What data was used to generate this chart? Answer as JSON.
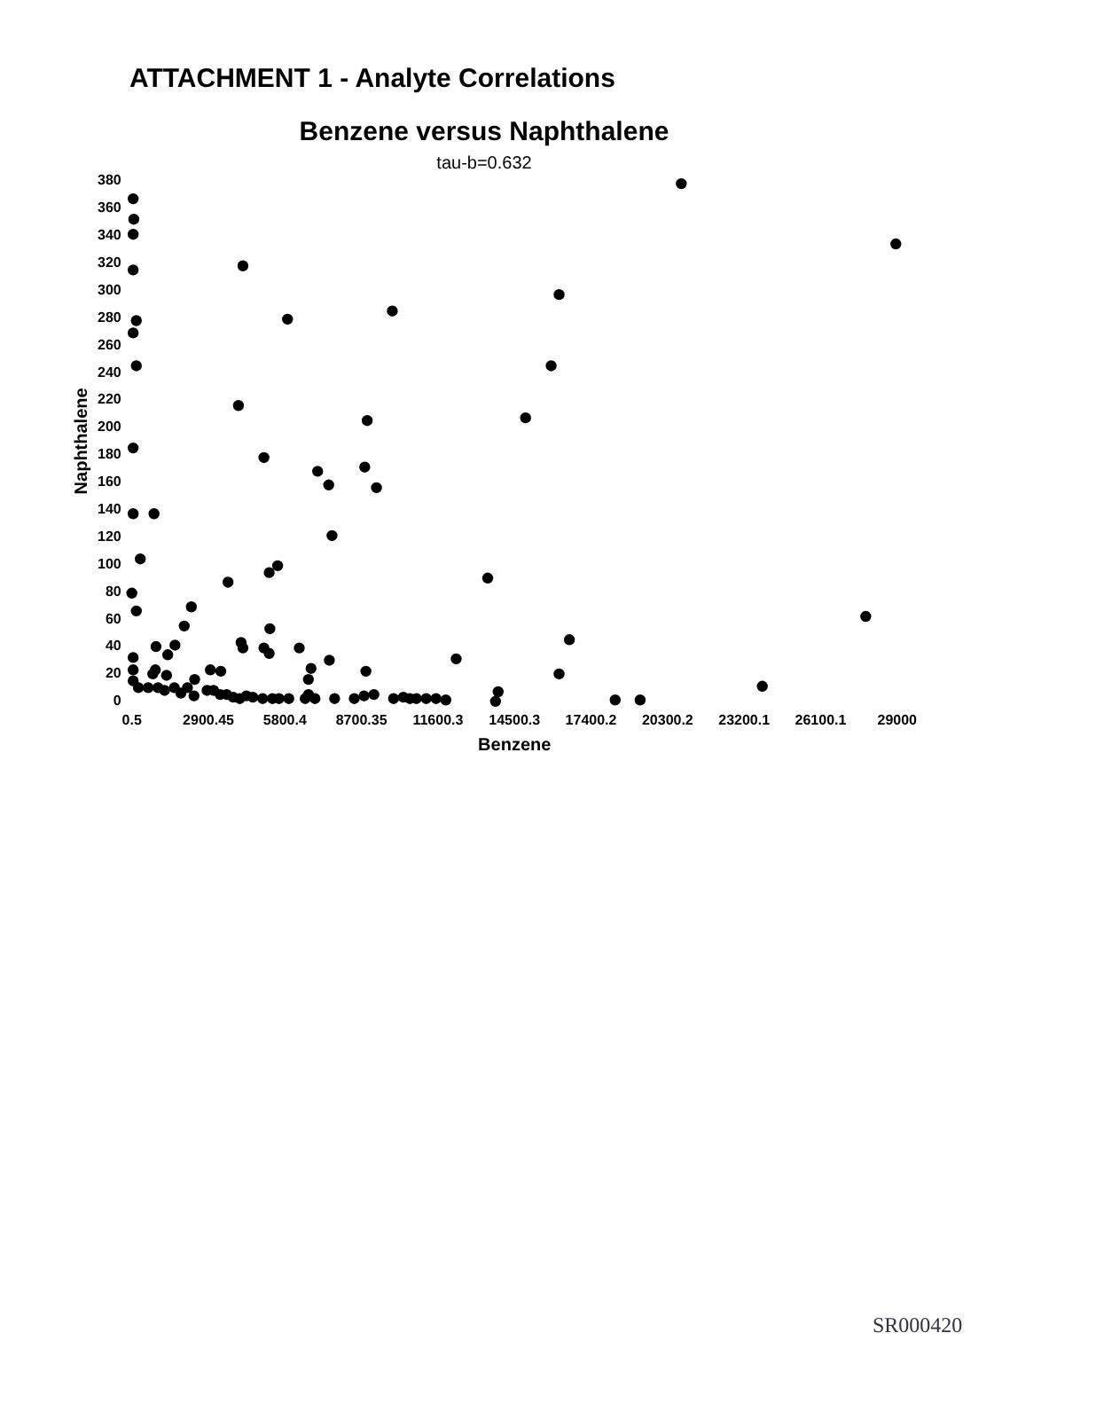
{
  "chart_data": {
    "type": "scatter",
    "title": "Benzene versus Naphthalene",
    "subtitle": "tau-b=0.632",
    "xlabel": "Benzene",
    "ylabel": "Naphthalene",
    "annotations": [
      "ATTACHMENT 1 - Analyte Correlations",
      "SR000420"
    ],
    "series": [
      {
        "color": "#000000",
        "x": [
          20820,
          28950,
          16190,
          15890,
          14920,
          4210,
          5900,
          9870,
          74,
          170,
          170,
          4040,
          8920,
          50,
          50,
          50,
          50,
          50,
          5005,
          7040,
          7460,
          8825,
          9270,
          7585,
          50,
          840,
          320,
          5525,
          5205,
          3645,
          0.5,
          170,
          2255,
          1985,
          5230,
          915,
          1635,
          1360,
          4140,
          4210,
          5005,
          5205,
          6345,
          6790,
          2975,
          3370,
          7485,
          8870,
          12290,
          795,
          890,
          1315,
          2380,
          6690,
          50,
          50,
          50,
          248,
          620,
          992,
          1240,
          1611,
          1859,
          2107,
          2355,
          2851,
          3098,
          3346,
          3594,
          3842,
          4090,
          4338,
          4586,
          4958,
          5329,
          5577,
          5949,
          6569,
          6692,
          6940,
          7684,
          8428,
          8800,
          9172,
          9916,
          10288,
          10536,
          10783,
          11154,
          11526,
          11898,
          13485,
          16580,
          16190,
          13880,
          13780,
          18315,
          19260,
          23890,
          27810
        ],
        "values": [
          378,
          334,
          297,
          245,
          207,
          318,
          279,
          285,
          352,
          278,
          245,
          216,
          205,
          367,
          341,
          315,
          269,
          185,
          178,
          168,
          158,
          171,
          156,
          121,
          137,
          137,
          104,
          99,
          94,
          87,
          79,
          66,
          69,
          55,
          53,
          40,
          41,
          34,
          43,
          39,
          39,
          35,
          39,
          24,
          23,
          22,
          30,
          22,
          31,
          20,
          23,
          19,
          16,
          16,
          32,
          23,
          15,
          10,
          10,
          10,
          8,
          10,
          6,
          10,
          4,
          8,
          8,
          5,
          5,
          3,
          2,
          4,
          3,
          2,
          2,
          2,
          2,
          2,
          5,
          2,
          2,
          2,
          4,
          5,
          2,
          3,
          2,
          2,
          2,
          2,
          1,
          90,
          45,
          20,
          7,
          0,
          1,
          1,
          11,
          62
        ]
      }
    ],
    "xlim": [
      0.5,
      29000
    ],
    "xticks": [
      0.5,
      2900.45,
      5800.4,
      8700.35,
      11600.3,
      14500.3,
      17400.2,
      20300.2,
      23200.1,
      26100.1,
      29000
    ],
    "ylim": [
      0,
      380
    ],
    "yticks": [
      0,
      20,
      40,
      60,
      80,
      100,
      120,
      140,
      160,
      180,
      200,
      220,
      240,
      260,
      280,
      300,
      320,
      340,
      360,
      380
    ],
    "grid": false,
    "legend": false,
    "marker": "circle"
  }
}
